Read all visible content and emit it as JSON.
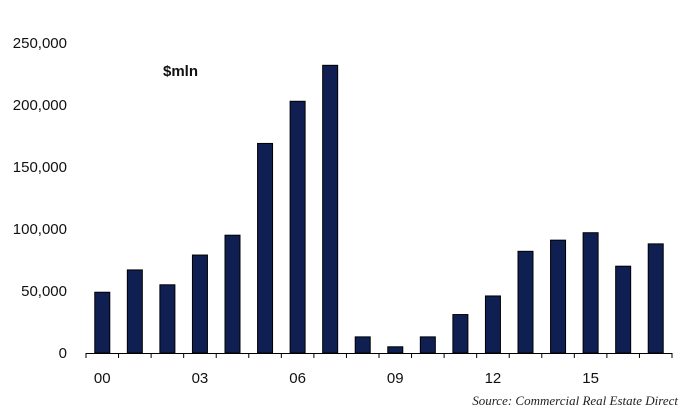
{
  "chart_data": {
    "type": "bar",
    "unit_label": "$mln",
    "source": "Source: Commercial Real Estate Direct",
    "categories": [
      "00",
      "01",
      "02",
      "03",
      "04",
      "05",
      "06",
      "07",
      "08",
      "09",
      "10",
      "11",
      "12",
      "13",
      "14",
      "15",
      "16",
      "17"
    ],
    "values": [
      49000,
      67000,
      55000,
      79000,
      95000,
      169000,
      203000,
      232000,
      13000,
      5000,
      13000,
      31000,
      46000,
      82000,
      91000,
      97000,
      70000,
      88000
    ],
    "x_tick_labels": [
      "00",
      "03",
      "06",
      "09",
      "12",
      "15"
    ],
    "y_tick_labels": [
      "0",
      "50,000",
      "100,000",
      "150,000",
      "200,000",
      "250,000"
    ],
    "ylim": [
      0,
      250000
    ],
    "grid": false,
    "legend": "none",
    "bar_color": "#0f1f52"
  }
}
